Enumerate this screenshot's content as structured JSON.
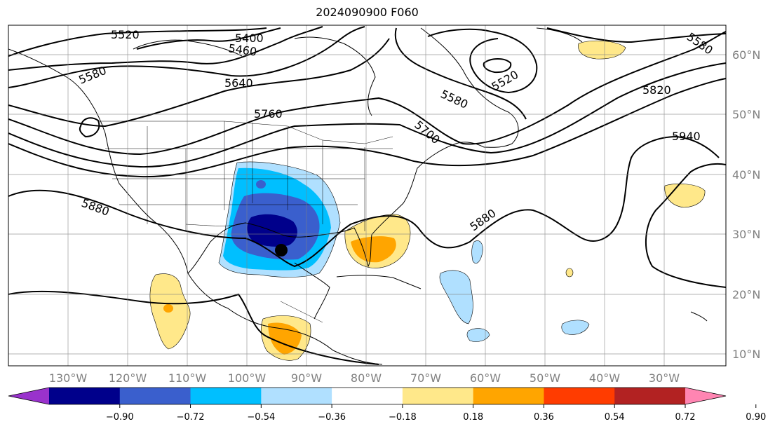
{
  "title": "2024090900 F060",
  "map": {
    "lon_labels": [
      "130°W",
      "120°W",
      "110°W",
      "100°W",
      "90°W",
      "80°W",
      "70°W",
      "60°W",
      "50°W",
      "40°W",
      "30°W"
    ],
    "lat_labels": [
      "60°N",
      "50°N",
      "40°N",
      "30°N",
      "20°N",
      "10°N"
    ],
    "grid": true,
    "marker": "storm-center-dot"
  },
  "contours": {
    "labels": [
      "5520",
      "5400",
      "5460",
      "5580",
      "5640",
      "5760",
      "5520",
      "5580",
      "5700",
      "5820",
      "5580",
      "5940",
      "5880",
      "5880"
    ]
  },
  "colorbar": {
    "ticks": [
      "−0.90",
      "−0.72",
      "−0.54",
      "−0.36",
      "−0.18",
      "0.18",
      "0.36",
      "0.54",
      "0.72",
      "0.90"
    ],
    "colors": [
      "#9932cc",
      "#00008b",
      "#3a5fcd",
      "#00bfff",
      "#b0e0ff",
      "#ffffff",
      "#ffe88a",
      "#ffa500",
      "#ff3c00",
      "#b22222",
      "#ff85b2"
    ]
  }
}
